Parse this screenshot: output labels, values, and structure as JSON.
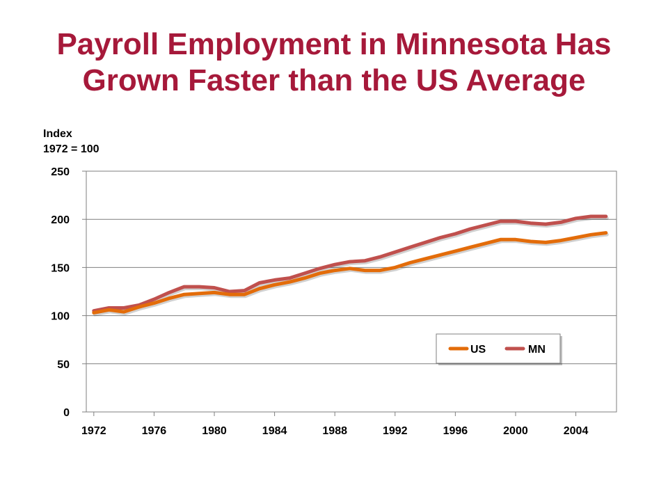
{
  "title_line1": "Payroll Employment in Minnesota Has",
  "title_line2": "Grown Faster than the US Average",
  "chart_data": {
    "type": "line",
    "title": "Payroll Employment in Minnesota Has Grown Faster than the US Average",
    "ylabel_line1": "Index",
    "ylabel_line2": "1972 = 100",
    "xlabel": "",
    "xlim": [
      1972,
      2006
    ],
    "ylim": [
      0,
      250
    ],
    "x_ticks": [
      1972,
      1976,
      1980,
      1984,
      1988,
      1992,
      1996,
      2000,
      2004
    ],
    "y_ticks": [
      0,
      50,
      100,
      150,
      200,
      250
    ],
    "grid": true,
    "legend_position": "lower-right",
    "x": [
      1972,
      1973,
      1974,
      1975,
      1976,
      1977,
      1978,
      1979,
      1980,
      1981,
      1982,
      1983,
      1984,
      1985,
      1986,
      1987,
      1988,
      1989,
      1990,
      1991,
      1992,
      1993,
      1994,
      1995,
      1996,
      1997,
      1998,
      1999,
      2000,
      2001,
      2002,
      2003,
      2004,
      2005,
      2006
    ],
    "series": [
      {
        "name": "US",
        "color": "#e36c0a",
        "values": [
          103,
          106,
          104,
          109,
          113,
          118,
          122,
          123,
          124,
          122,
          122,
          128,
          132,
          135,
          139,
          144,
          147,
          149,
          147,
          147,
          150,
          155,
          159,
          163,
          167,
          171,
          175,
          179,
          179,
          177,
          176,
          178,
          181,
          184,
          186
        ]
      },
      {
        "name": "MN",
        "color": "#c0504d",
        "values": [
          105,
          108,
          108,
          111,
          117,
          124,
          130,
          130,
          129,
          125,
          126,
          134,
          137,
          139,
          144,
          149,
          153,
          156,
          157,
          161,
          166,
          171,
          176,
          181,
          185,
          190,
          194,
          198,
          198,
          196,
          195,
          197,
          201,
          203,
          203
        ]
      }
    ]
  }
}
